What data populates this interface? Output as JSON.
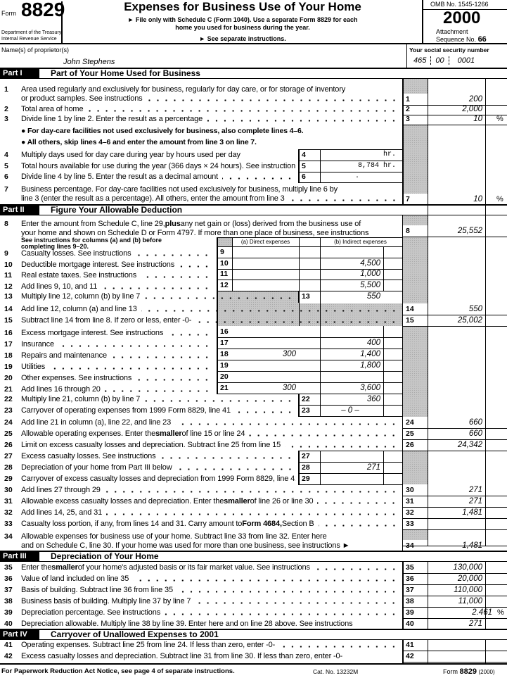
{
  "header": {
    "form_word": "Form",
    "form_number": "8829",
    "agency_line1": "Department of the Treasury",
    "agency_line2": "Internal Revenue Service",
    "title": "Expenses for Business Use of Your Home",
    "instruction1": "► File only with Schedule C (Form 1040). Use a separate Form 8829 for each",
    "instruction2": "home you used for business during the year.",
    "instruction3": "► See separate instructions.",
    "omb": "OMB No. 1545-1266",
    "year": "2000",
    "attachment": "Attachment",
    "sequence_label": "Sequence No.",
    "sequence_no": "66"
  },
  "taxpayer": {
    "name_label": "Name(s) of proprietor(s)",
    "name": "John Stephens",
    "ssn_label": "Your social security number",
    "ssn": [
      "465",
      "00",
      "0001"
    ]
  },
  "parts": {
    "p1": {
      "label": "Part I",
      "title": "Part of Your Home Used for Business"
    },
    "p2": {
      "label": "Part II",
      "title": "Figure Your Allowable Deduction"
    },
    "p3": {
      "label": "Part III",
      "title": "Depreciation of Your Home"
    },
    "p4": {
      "label": "Part IV",
      "title": "Carryover of Unallowed Expenses to 2001"
    }
  },
  "bullets": [
    "● For day-care facilities not used exclusively for business, also complete lines 4–6.",
    "● All others, skip lines 4–6 and enter the amount from line 3 on line 7."
  ],
  "columns_note": [
    "See instructions for columns (a) and (b) before",
    "completing lines 9–20."
  ],
  "columns": {
    "a": "(a) Direct expenses",
    "b": "(b) Indirect expenses"
  },
  "lines": {
    "1": {
      "text": [
        "Area used regularly and exclusively for business, regularly for day care, or for storage of inventory"
      ],
      "text2": [
        "or product samples. See instructions"
      ],
      "value": "200"
    },
    "2": {
      "text": [
        "Total area of home"
      ],
      "value": "2,000"
    },
    "3": {
      "text": [
        "Divide line 1 by line 2. Enter the result as a percentage"
      ],
      "value": "10",
      "unit": "%"
    },
    "4": {
      "text": [
        "Multiply days used for day care during year by hours used per day"
      ],
      "value": "",
      "unit": "hr."
    },
    "5": {
      "text": [
        "Total hours available for use during the year (366 days × 24 hours). See instructions"
      ],
      "value": "8,784",
      "unit": "hr."
    },
    "6": {
      "text": [
        "Divide line 4 by line 5. Enter the result as a decimal amount"
      ],
      "value": "."
    },
    "7": {
      "text": [
        "Business percentage. For day-care facilities not used exclusively for business, multiply line 6 by"
      ],
      "text2": [
        "line 3 (enter the result as a percentage). All others, enter the amount from line 3"
      ],
      "value": "10",
      "unit": "%"
    },
    "8": {
      "text": [
        "Enter the amount from Schedule C, line 29, ",
        "plus",
        " any net gain or (loss) derived from the business use of"
      ],
      "text2": [
        "your home and shown on Schedule D or Form 4797. If more than one place of business, see instructions"
      ],
      "value": "25,552"
    },
    "9": {
      "text": [
        "Casualty losses. See instructions"
      ],
      "a": "",
      "b": ""
    },
    "10": {
      "text": [
        "Deductible mortgage interest. See instructions"
      ],
      "a": "",
      "b": "4,500"
    },
    "11": {
      "text": [
        "Real estate taxes. See instructions"
      ],
      "a": "",
      "b": "1,000"
    },
    "12": {
      "text": [
        "Add lines 9, 10, and 11"
      ],
      "a": "",
      "b": "5,500"
    },
    "13": {
      "text": [
        "Multiply line 12, column (b) by line 7"
      ],
      "value": "550"
    },
    "14": {
      "text": [
        "Add line 12, column (a) and line 13"
      ],
      "value": "550"
    },
    "15": {
      "text": [
        "Subtract line 14 from line 8. If zero or less, enter -0-"
      ],
      "value": "25,002"
    },
    "16": {
      "text": [
        "Excess mortgage interest. See instructions"
      ],
      "a": "",
      "b": ""
    },
    "17": {
      "text": [
        "Insurance"
      ],
      "a": "",
      "b": "400"
    },
    "18": {
      "text": [
        "Repairs and maintenance"
      ],
      "a": "300",
      "b": "1,400"
    },
    "19": {
      "text": [
        "Utilities"
      ],
      "a": "",
      "b": "1,800"
    },
    "20": {
      "text": [
        "Other expenses. See instructions"
      ],
      "a": "",
      "b": ""
    },
    "21": {
      "text": [
        "Add lines 16 through 20"
      ],
      "a": "300",
      "b": "3,600"
    },
    "22": {
      "text": [
        "Multiply line 21, column (b) by line 7"
      ],
      "value": "360"
    },
    "23": {
      "text": [
        "Carryover of operating expenses from 1999 Form 8829, line 41"
      ],
      "value": "– 0 –"
    },
    "24": {
      "text": [
        "Add line 21 in column (a), line 22, and line 23"
      ],
      "value": "660"
    },
    "25": {
      "text": [
        "Allowable operating expenses. Enter the ",
        "smaller",
        " of line 15 or line 24"
      ],
      "value": "660"
    },
    "26": {
      "text": [
        "Limit on excess casualty losses and depreciation. Subtract line 25 from line 15"
      ],
      "value": "24,342"
    },
    "27": {
      "text": [
        "Excess casualty losses. See instructions"
      ],
      "value": ""
    },
    "28": {
      "text": [
        "Depreciation of your home from Part III below"
      ],
      "value": "271"
    },
    "29": {
      "text": [
        "Carryover of excess casualty losses and depreciation from 1999 Form 8829, line 42"
      ],
      "value": ""
    },
    "30": {
      "text": [
        "Add lines 27 through 29"
      ],
      "value": "271"
    },
    "31": {
      "text": [
        "Allowable excess casualty losses and depreciation. Enter the ",
        "smaller",
        " of line 26 or line 30"
      ],
      "value": "271"
    },
    "32": {
      "text": [
        "Add lines 14, 25, and 31"
      ],
      "value": "1,481"
    },
    "33": {
      "text": [
        "Casualty loss portion, if any, from lines 14 and 31. Carry amount to ",
        "Form 4684,",
        " Section B"
      ],
      "value": ""
    },
    "34": {
      "text": [
        "Allowable expenses for business use of your home. Subtract line 33 from line 32. Enter here"
      ],
      "text2": [
        "and on Schedule C, line 30. If your home was used for more than one business, see instructions ►"
      ],
      "value": "1,481"
    },
    "35": {
      "text": [
        "Enter the ",
        "smaller",
        " of your home's adjusted basis or its fair market value. See instructions"
      ],
      "value": "130,000"
    },
    "36": {
      "text": [
        "Value of land included on line 35"
      ],
      "value": "20,000"
    },
    "37": {
      "text": [
        "Basis of building. Subtract line 36 from line 35"
      ],
      "value": "110,000"
    },
    "38": {
      "text": [
        "Business basis of building. Multiply line 37 by line 7"
      ],
      "value": "11,000"
    },
    "39": {
      "text": [
        "Depreciation percentage. See instructions"
      ],
      "value": "2.461",
      "unit": "%"
    },
    "40": {
      "text": [
        "Depreciation allowable. Multiply line 38 by line 39. Enter here and on line 28 above. See instructions"
      ],
      "value": "271"
    },
    "41": {
      "text": [
        "Operating expenses. Subtract line 25 from line 24. If less than zero, enter -0-"
      ],
      "value": ""
    },
    "42": {
      "text": [
        "Excess casualty losses and depreciation. Subtract line 31 from line 30. If less than zero, enter -0-"
      ],
      "value": ""
    }
  },
  "footer": {
    "paperwork": "For Paperwork Reduction Act Notice, see page 4 of separate instructions.",
    "cat_no": "Cat. No. 13232M",
    "form_word": "Form",
    "form_number": "8829",
    "year": "(2000)"
  }
}
